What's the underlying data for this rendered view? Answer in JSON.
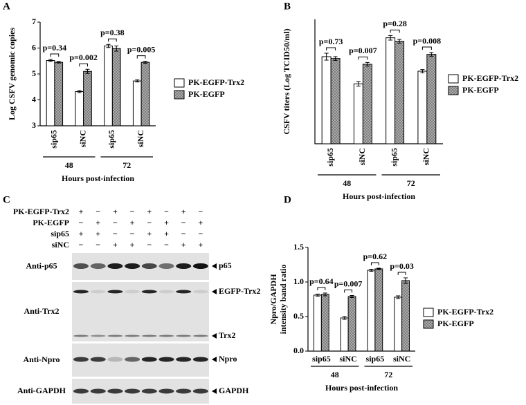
{
  "chart_data": [
    {
      "type": "bar",
      "panel": "A",
      "y_label": "Log CSFV genomic copies",
      "x_label": "Hours post-infection",
      "categories": [
        "sip65",
        "siNC",
        "sip65",
        "siNC"
      ],
      "group_labels": [
        "48",
        "72"
      ],
      "rotate_categories": true,
      "series": [
        {
          "name": "PK-EGFP-Trx2",
          "color": "#ffffff",
          "values": [
            5.52,
            4.32,
            6.08,
            4.73
          ],
          "errors": [
            0.04,
            0.04,
            0.06,
            0.04
          ]
        },
        {
          "name": "PK-EGFP",
          "color": "#7a7a7a",
          "pattern": "crosshatch",
          "values": [
            5.45,
            5.1,
            5.98,
            5.45
          ],
          "errors": [
            0.03,
            0.08,
            0.1,
            0.04
          ]
        }
      ],
      "annotations": [
        "p=0.34",
        "p=0.002",
        "p=0.38",
        "p=0.005"
      ],
      "ylim": [
        3,
        7
      ],
      "yticks": [
        3,
        4,
        5,
        6,
        7
      ]
    },
    {
      "type": "bar",
      "panel": "B",
      "y_label": "CSFV titers (Log TCID50/ml)",
      "x_label": "Hours post-infection",
      "categories": [
        "sip65",
        "siNC",
        "sip65",
        "siNC"
      ],
      "group_labels": [
        "48",
        "72"
      ],
      "rotate_categories": true,
      "series": [
        {
          "name": "PK-EGFP-Trx2",
          "color": "#ffffff",
          "values": [
            4.98,
            3.8,
            5.8,
            4.35
          ],
          "errors": [
            0.15,
            0.1,
            0.1,
            0.07
          ]
        },
        {
          "name": "PK-EGFP",
          "color": "#7a7a7a",
          "pattern": "crosshatch",
          "values": [
            4.9,
            4.65,
            5.65,
            5.08
          ],
          "errors": [
            0.08,
            0.08,
            0.08,
            0.08
          ]
        }
      ],
      "annotations": [
        "p=0.73",
        "p=0.007",
        "p=0.28",
        "p=0.008"
      ],
      "ylim": [
        1.2,
        6.6
      ]
    },
    {
      "type": "bar",
      "panel": "D",
      "y_label": [
        "Npro/GAPDH",
        "intensity band ratio"
      ],
      "x_label": "Hours post-infection",
      "categories": [
        "sip65",
        "siNC",
        "sip65",
        "siNC"
      ],
      "group_labels": [
        "48",
        "72"
      ],
      "rotate_categories": false,
      "series": [
        {
          "name": "PK-EGFP-Trx2",
          "color": "#ffffff",
          "values": [
            0.81,
            0.48,
            1.17,
            0.78
          ],
          "errors": [
            0.015,
            0.02,
            0.015,
            0.02
          ]
        },
        {
          "name": "PK-EGFP",
          "color": "#7a7a7a",
          "pattern": "crosshatch",
          "values": [
            0.82,
            0.79,
            1.19,
            1.02
          ],
          "errors": [
            0.02,
            0.015,
            0.01,
            0.04
          ]
        }
      ],
      "annotations": [
        "p=0.64",
        "p=0.007",
        "p=0.62",
        "p=0.03"
      ],
      "ylim": [
        0,
        1.5
      ],
      "yticks": [
        {
          "value": 0,
          "label": "0.0"
        },
        0.5,
        {
          "value": 1,
          "label": "1.0"
        },
        1.5
      ]
    }
  ],
  "blot": {
    "panel": "C",
    "conditions": [
      {
        "name": "PK-EGFP-Trx2",
        "signs": [
          "+",
          "−",
          "+",
          "−",
          "+",
          "−",
          "+",
          "−"
        ]
      },
      {
        "name": "PK-EGFP",
        "signs": [
          "−",
          "+",
          "−",
          "+",
          "−",
          "+",
          "−",
          "+"
        ]
      },
      {
        "name": "sip65",
        "signs": [
          "+",
          "+",
          "−",
          "−",
          "+",
          "+",
          "−",
          "−"
        ]
      },
      {
        "name": "siNC",
        "signs": [
          "−",
          "−",
          "+",
          "+",
          "−",
          "−",
          "+",
          "+"
        ]
      }
    ],
    "blots": [
      {
        "antibody": "Anti-p65",
        "bands": [
          "p65"
        ]
      },
      {
        "antibody": "Anti-Trx2",
        "bands": [
          "EGFP-Trx2",
          "Trx2"
        ]
      },
      {
        "antibody": "Anti-Npro",
        "bands": [
          "Npro"
        ]
      },
      {
        "antibody": "Anti-GAPDH",
        "bands": [
          "GAPDH"
        ]
      }
    ]
  }
}
